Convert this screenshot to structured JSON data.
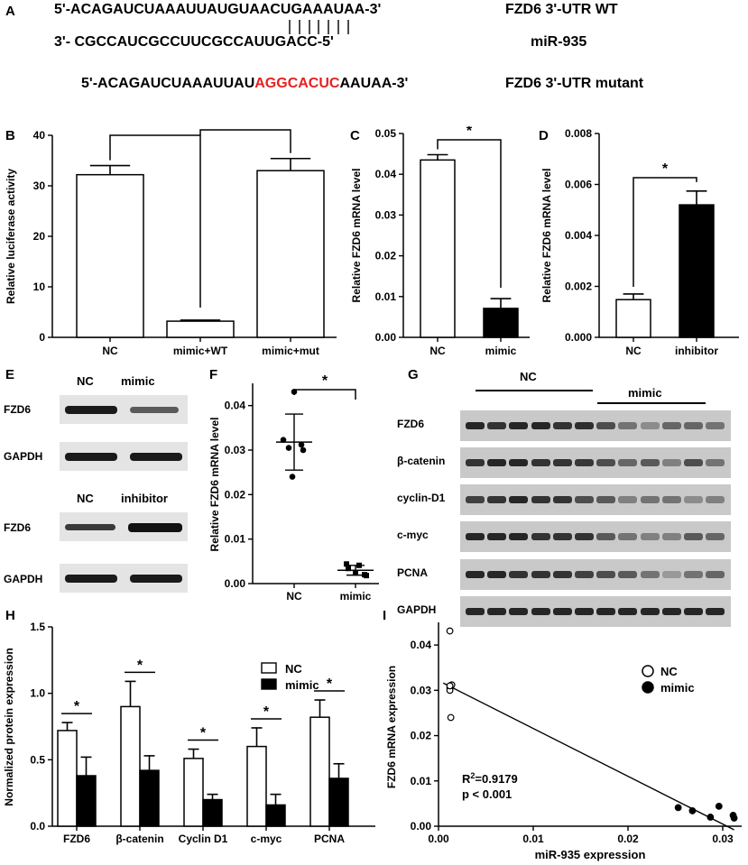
{
  "panel_labels": {
    "A": "A",
    "B": "B",
    "C": "C",
    "D": "D",
    "E": "E",
    "F": "F",
    "G": "G",
    "H": "H",
    "I": "I"
  },
  "sequences": {
    "wt_seq": "5'-ACAGAUCUAAAUUAUGUAACUGAAAUAA-3'",
    "wt_label": "FZD6 3'-UTR WT",
    "mir_seq": "3'- CGCCAUCGCCUUCGCCAUUGACC-5'",
    "mir_label": "miR-935",
    "mut_prefix": "5'-ACAGAUCUAAAUUAU",
    "mut_highlight": "AGGCACUC",
    "mut_suffix": "AAUAA-3'",
    "mut_label": "FZD6 3'-UTR mutant",
    "mut_color": "#e8201f"
  },
  "blots": {
    "E": {
      "top_headers": [
        "NC",
        "mimic"
      ],
      "top_rows": [
        "FZD6",
        "GAPDH"
      ],
      "bottom_headers": [
        "NC",
        "inhibitor"
      ],
      "bottom_rows": [
        "FZD6",
        "GAPDH"
      ]
    },
    "G": {
      "headers": [
        "NC",
        "mimic"
      ],
      "rows": [
        "FZD6",
        "β-catenin",
        "cyclin-D1",
        "c-myc",
        "PCNA",
        "GAPDH"
      ]
    }
  },
  "chart_data": [
    {
      "panel": "B",
      "type": "bar",
      "categories": [
        "NC",
        "mimic+WT",
        "mimic+mut"
      ],
      "values": [
        32.2,
        3.2,
        33.0
      ],
      "errors": [
        1.8,
        0.2,
        2.4
      ],
      "fills": [
        "#ffffff",
        "#ffffff",
        "#ffffff"
      ],
      "ylabel": "Relative luciferase activity",
      "ylim": [
        0,
        40
      ],
      "yticks": [
        0,
        10,
        20,
        30,
        40
      ],
      "significance": [
        {
          "between": [
            0,
            1
          ],
          "label": "*"
        },
        {
          "between": [
            1,
            2
          ],
          "label": "*"
        }
      ]
    },
    {
      "panel": "C",
      "type": "bar",
      "categories": [
        "NC",
        "mimic"
      ],
      "values": [
        0.0435,
        0.0071
      ],
      "errors": [
        0.0013,
        0.0024
      ],
      "fills": [
        "#ffffff",
        "#000000"
      ],
      "ylabel": "Relative FZD6 mRNA level",
      "ylim": [
        0,
        0.05
      ],
      "yticks": [
        "0.00",
        "0.01",
        "0.02",
        "0.03",
        "0.04",
        "0.05"
      ],
      "significance": [
        {
          "between": [
            0,
            1
          ],
          "label": "*"
        }
      ]
    },
    {
      "panel": "D",
      "type": "bar",
      "categories": [
        "NC",
        "inhibitor"
      ],
      "values": [
        0.00148,
        0.0052
      ],
      "errors": [
        0.00022,
        0.00054
      ],
      "fills": [
        "#ffffff",
        "#000000"
      ],
      "ylabel": "Relative FZD6 mRNA level",
      "ylim": [
        0,
        0.008
      ],
      "yticks": [
        "0.000",
        "0.002",
        "0.004",
        "0.006",
        "0.008"
      ],
      "significance": [
        {
          "between": [
            0,
            1
          ],
          "label": "*"
        }
      ]
    },
    {
      "panel": "F",
      "type": "scatter",
      "categories": [
        "NC",
        "mimic"
      ],
      "points": [
        [
          0.0431,
          0.0312,
          0.0305,
          0.03,
          0.024,
          0.0323
        ],
        [
          0.0041,
          0.0034,
          0.002,
          0.0044,
          0.0024,
          0.0018
        ]
      ],
      "means": [
        0.0318,
        0.003
      ],
      "sds": [
        0.0063,
        0.0011
      ],
      "ylabel": "Relative FZD6 mRNA level",
      "ylim": [
        0,
        0.045
      ],
      "yticks": [
        "0.00",
        "0.01",
        "0.02",
        "0.03",
        "0.04"
      ],
      "significance": [
        {
          "between": [
            0,
            1
          ],
          "label": "*"
        }
      ]
    },
    {
      "panel": "H",
      "type": "bar",
      "categories": [
        "FZD6",
        "β-catenin",
        "Cyclin D1",
        "c-myc",
        "PCNA"
      ],
      "series": [
        {
          "name": "NC",
          "values": [
            0.72,
            0.9,
            0.51,
            0.6,
            0.82
          ],
          "errors": [
            0.06,
            0.19,
            0.07,
            0.14,
            0.13
          ],
          "color": "#ffffff"
        },
        {
          "name": "mimic",
          "values": [
            0.38,
            0.42,
            0.2,
            0.16,
            0.36
          ],
          "errors": [
            0.14,
            0.11,
            0.04,
            0.08,
            0.11
          ],
          "color": "#000000"
        }
      ],
      "ylabel": "Normalized protein expression",
      "ylim": [
        0,
        1.5
      ],
      "yticks": [
        "0.0",
        "0.5",
        "1.0",
        "1.5"
      ],
      "legend": "top-right",
      "significance_label": "*"
    },
    {
      "panel": "I",
      "type": "scatter",
      "series": [
        {
          "name": "NC",
          "x": [
            0.0012,
            0.0012,
            0.0012,
            0.0013,
            0.0014,
            0.0012
          ],
          "y": [
            0.0431,
            0.0305,
            0.03,
            0.024,
            0.0312,
            0.031
          ],
          "fill": "#ffffff"
        },
        {
          "name": "mimic",
          "x": [
            0.0253,
            0.0268,
            0.0287,
            0.0296,
            0.0311,
            0.0312
          ],
          "y": [
            0.0041,
            0.0034,
            0.002,
            0.0044,
            0.0024,
            0.0018
          ],
          "fill": "#000000"
        }
      ],
      "regression": {
        "x": [
          0.0005,
          0.0312
        ],
        "y": [
          0.0316,
          -0.0008
        ]
      },
      "xlabel": "miR-935 expression",
      "ylabel": "FZD6 mRNA expression",
      "xlim": [
        0,
        0.032
      ],
      "ylim": [
        0,
        0.045
      ],
      "xticks": [
        "0.00",
        "0.01",
        "0.02",
        "0.03"
      ],
      "yticks": [
        "0.00",
        "0.01",
        "0.02",
        "0.03",
        "0.04"
      ],
      "annotation_r2_base": "R",
      "annotation_r2_sup": "2",
      "annotation_r2_rest": "=0.9179",
      "annotation_p": "p < 0.001",
      "legend": "top-right"
    }
  ]
}
